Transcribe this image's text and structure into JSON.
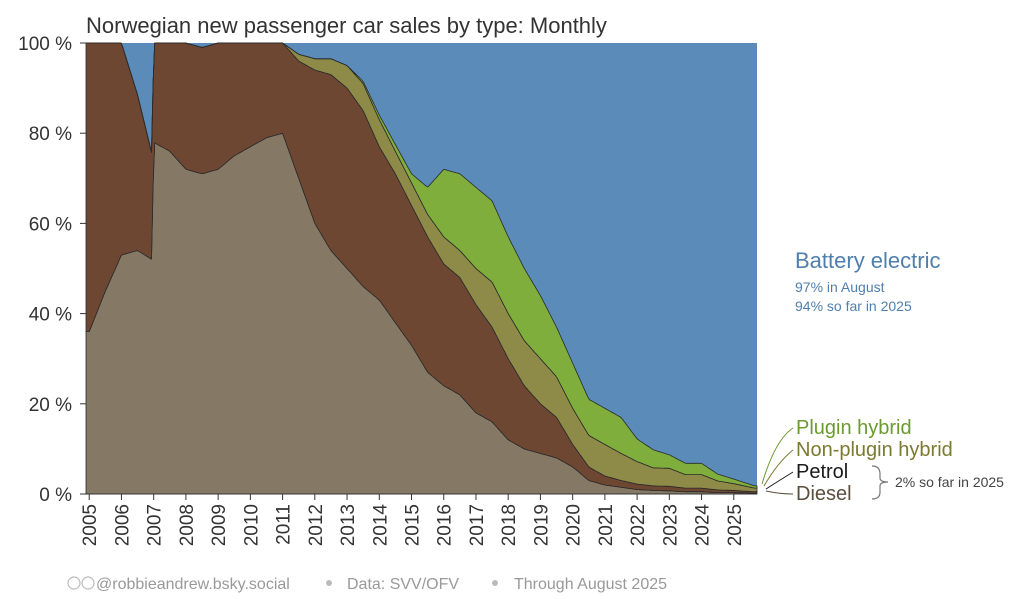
{
  "chart_data": {
    "type": "area",
    "title": "Norwegian new passenger car sales by type: Monthly",
    "xlabel": "",
    "ylabel": "",
    "ylim": [
      0,
      100
    ],
    "xlim": [
      2004.9,
      2025.72
    ],
    "y_ticks": [
      "0 %",
      "20 %",
      "40 %",
      "60 %",
      "80 %",
      "100 %"
    ],
    "y_tick_values": [
      0,
      20,
      40,
      60,
      80,
      100
    ],
    "x_ticks": [
      "2005",
      "2006",
      "2007",
      "2008",
      "2009",
      "2010",
      "2011",
      "2012",
      "2013",
      "2014",
      "2015",
      "2016",
      "2017",
      "2018",
      "2019",
      "2020",
      "2021",
      "2022",
      "2023",
      "2024",
      "2025"
    ],
    "stack_order": [
      "Diesel",
      "Petrol",
      "Non-plugin hybrid",
      "Plugin hybrid",
      "Battery electric"
    ],
    "series": [
      {
        "name": "Diesel",
        "label": "Diesel",
        "color": "#857865",
        "x": [
          2005,
          2005.5,
          2006,
          2006.5,
          2006.95,
          2007,
          2007.5,
          2008,
          2008.5,
          2009,
          2009.5,
          2010,
          2010.5,
          2011,
          2011.5,
          2012,
          2012.5,
          2013,
          2013.5,
          2014,
          2014.5,
          2015,
          2015.5,
          2016,
          2016.5,
          2017,
          2017.5,
          2018,
          2018.5,
          2019,
          2019.5,
          2020,
          2020.5,
          2021,
          2021.5,
          2022,
          2022.5,
          2023,
          2023.5,
          2024,
          2024.5,
          2025,
          2025.65
        ],
        "values": [
          36,
          45,
          53,
          54,
          52,
          78,
          76,
          72,
          71,
          72,
          75,
          77,
          79,
          80,
          70,
          60,
          54,
          50,
          46,
          43,
          38,
          33,
          27,
          24,
          22,
          18,
          16,
          12,
          10,
          9,
          8,
          6,
          3,
          2,
          1.5,
          1,
          0.8,
          0.7,
          0.5,
          0.5,
          0.3,
          0.3,
          0.2
        ]
      },
      {
        "name": "Petrol",
        "label": "Petrol",
        "color": "#6e4733",
        "x": [
          2005,
          2006,
          2007,
          2008,
          2009,
          2010,
          2011,
          2011.5,
          2012,
          2012.5,
          2013,
          2013.5,
          2014,
          2014.5,
          2015,
          2015.5,
          2016,
          2016.5,
          2017,
          2017.5,
          2018,
          2018.5,
          2019,
          2019.5,
          2020,
          2020.5,
          2021,
          2021.5,
          2022,
          2022.5,
          2023,
          2023.5,
          2024,
          2024.5,
          2025,
          2025.65
        ],
        "values": [
          64,
          47,
          22,
          28,
          28,
          23,
          20,
          26,
          34,
          39,
          40,
          39,
          34,
          33,
          31,
          30,
          27,
          26,
          24,
          21,
          18,
          14,
          11,
          9,
          5,
          3,
          2,
          1.5,
          1.2,
          1,
          1,
          0.8,
          0.8,
          0.6,
          0.5,
          0.3
        ]
      },
      {
        "name": "Non-plugin hybrid",
        "label": "Non-plugin hybrid",
        "color": "#8e8a47",
        "x": [
          2005,
          2010,
          2011,
          2011.5,
          2012,
          2012.5,
          2013,
          2013.5,
          2014,
          2014.5,
          2015,
          2015.5,
          2016,
          2016.5,
          2017,
          2017.5,
          2018,
          2018.5,
          2019,
          2019.5,
          2020,
          2020.5,
          2021,
          2021.5,
          2022,
          2022.5,
          2023,
          2023.5,
          2024,
          2024.5,
          2025,
          2025.65
        ],
        "values": [
          0,
          0,
          0,
          1.5,
          2.5,
          3.5,
          5,
          6,
          6,
          5,
          5,
          5,
          6,
          6,
          8,
          10,
          10,
          10,
          10,
          9,
          8,
          7,
          7,
          6,
          5,
          4,
          4,
          3,
          3,
          2,
          1.5,
          0.8
        ]
      },
      {
        "name": "Plugin hybrid",
        "label": "Plugin hybrid",
        "color": "#7fae3c",
        "x": [
          2005,
          2013,
          2013.5,
          2014,
          2014.5,
          2015,
          2015.5,
          2016,
          2016.5,
          2017,
          2017.5,
          2018,
          2018.5,
          2019,
          2019.5,
          2020,
          2020.5,
          2021,
          2021.5,
          2022,
          2022.5,
          2023,
          2023.5,
          2024,
          2024.5,
          2025,
          2025.65
        ],
        "values": [
          0,
          0,
          0.5,
          1,
          1.5,
          2,
          6,
          15,
          17,
          18,
          18,
          17,
          16,
          14,
          11,
          10,
          8,
          8,
          8,
          5,
          4,
          3,
          2.5,
          2.5,
          1.5,
          1,
          0.5
        ]
      }
    ],
    "top_series": {
      "name": "Battery electric",
      "label": "Battery electric",
      "color": "#5b8bb9",
      "note_1": "97% in August",
      "note_2": "94% so far in 2025"
    },
    "bracket_note": "2% so far in 2025",
    "label_colors": {
      "Battery electric": "#4f7fad",
      "Plugin hybrid": "#6b9a2e",
      "Non-plugin hybrid": "#7a7a30",
      "Petrol": "#1a1a1a",
      "Diesel": "#5a4e3d"
    }
  },
  "footer": {
    "handle": "@robbieandrew.bsky.social",
    "source": "Data: SVV/OFV",
    "period": "Through August 2025"
  }
}
